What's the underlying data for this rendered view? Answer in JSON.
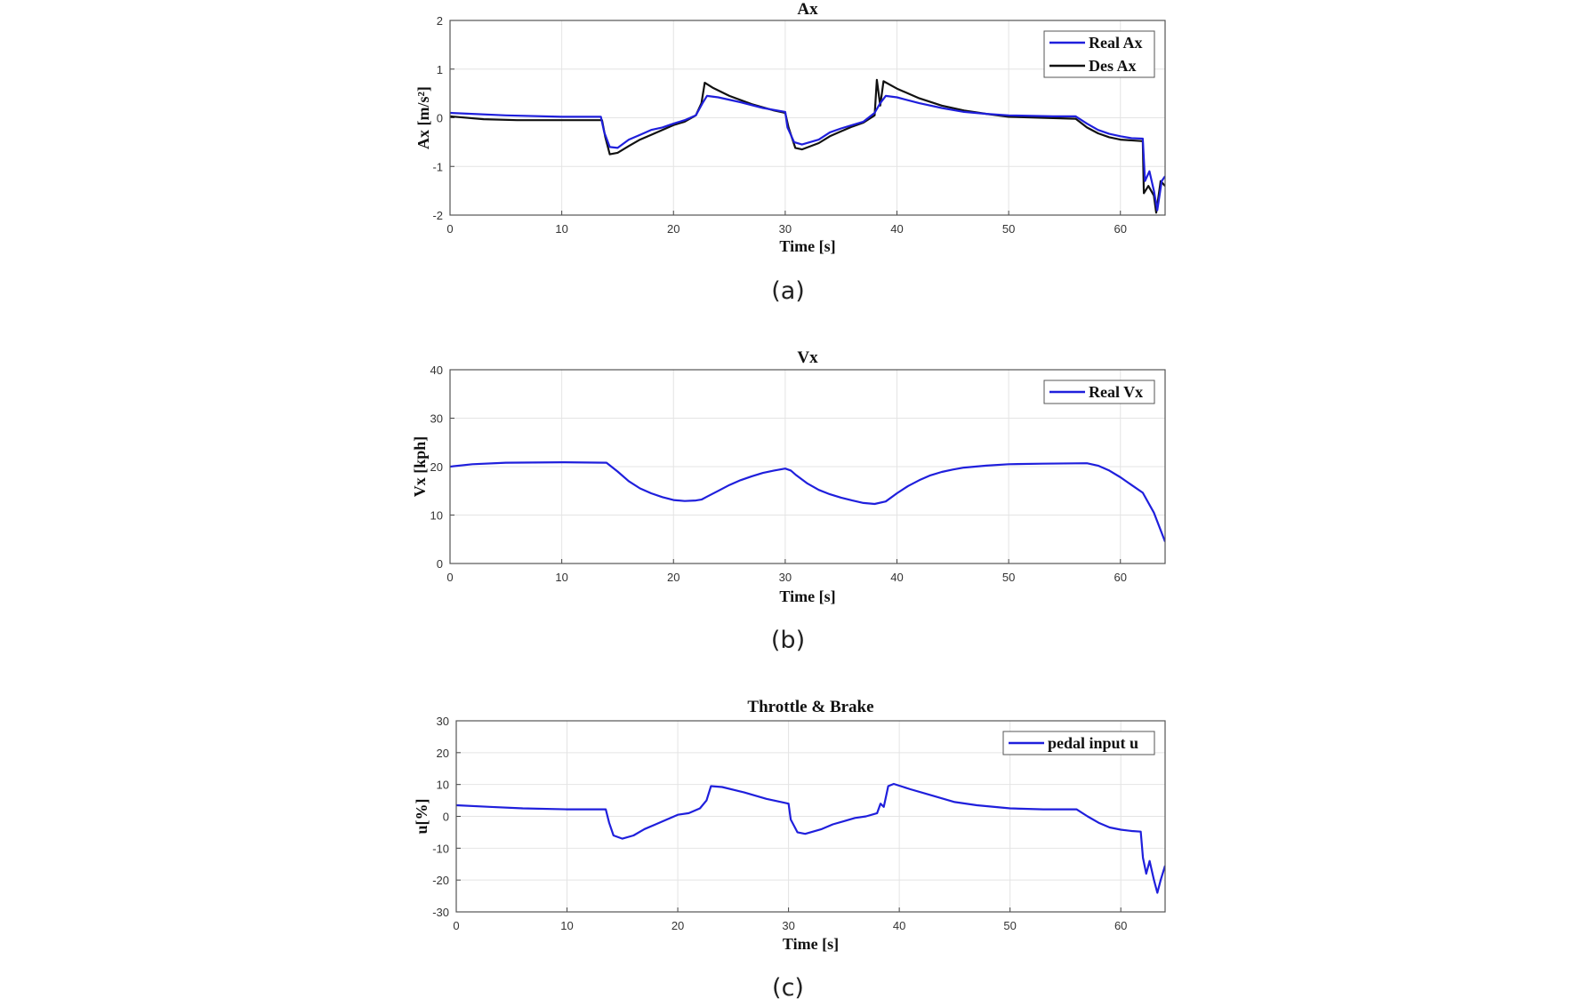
{
  "chart_data": [
    {
      "type": "line",
      "title": "Ax",
      "xlabel": "Time [s]",
      "ylabel": "Ax [m/s²]",
      "xlim": [
        0,
        64
      ],
      "ylim": [
        -2,
        2
      ],
      "xticks": [
        0,
        10,
        20,
        30,
        40,
        50,
        60
      ],
      "yticks": [
        -2,
        -1,
        0,
        1,
        2
      ],
      "grid": true,
      "legend_position": "top-right",
      "caption": "(a)",
      "series": [
        {
          "name": "Real Ax",
          "color": "#1f1fdc",
          "points": [
            [
              0,
              0.1
            ],
            [
              5,
              0.05
            ],
            [
              10,
              0.02
            ],
            [
              13.5,
              0.02
            ],
            [
              13.8,
              -0.3
            ],
            [
              14.3,
              -0.6
            ],
            [
              15,
              -0.62
            ],
            [
              16,
              -0.45
            ],
            [
              17,
              -0.35
            ],
            [
              18,
              -0.25
            ],
            [
              19,
              -0.2
            ],
            [
              20,
              -0.12
            ],
            [
              21,
              -0.05
            ],
            [
              22,
              0.05
            ],
            [
              22.6,
              0.3
            ],
            [
              23,
              0.45
            ],
            [
              24,
              0.42
            ],
            [
              26,
              0.32
            ],
            [
              28,
              0.2
            ],
            [
              30,
              0.12
            ],
            [
              30.2,
              -0.2
            ],
            [
              30.8,
              -0.5
            ],
            [
              31.5,
              -0.55
            ],
            [
              33,
              -0.45
            ],
            [
              34,
              -0.3
            ],
            [
              35,
              -0.22
            ],
            [
              36,
              -0.15
            ],
            [
              37,
              -0.08
            ],
            [
              38,
              0.1
            ],
            [
              38.5,
              0.3
            ],
            [
              39,
              0.45
            ],
            [
              40,
              0.42
            ],
            [
              42,
              0.3
            ],
            [
              44,
              0.2
            ],
            [
              46,
              0.12
            ],
            [
              48,
              0.08
            ],
            [
              50,
              0.05
            ],
            [
              54,
              0.03
            ],
            [
              56,
              0.03
            ],
            [
              57,
              -0.12
            ],
            [
              58,
              -0.25
            ],
            [
              59,
              -0.33
            ],
            [
              60,
              -0.38
            ],
            [
              61,
              -0.42
            ],
            [
              62,
              -0.43
            ],
            [
              62.2,
              -1.3
            ],
            [
              62.6,
              -1.1
            ],
            [
              63,
              -1.5
            ],
            [
              63.3,
              -1.9
            ],
            [
              63.7,
              -1.3
            ],
            [
              64,
              -1.2
            ]
          ]
        },
        {
          "name": "Des Ax",
          "color": "#111111",
          "points": [
            [
              0,
              0.03
            ],
            [
              3,
              -0.03
            ],
            [
              6,
              -0.05
            ],
            [
              10,
              -0.05
            ],
            [
              13.6,
              -0.05
            ],
            [
              13.9,
              -0.4
            ],
            [
              14.3,
              -0.75
            ],
            [
              15,
              -0.72
            ],
            [
              16,
              -0.58
            ],
            [
              17,
              -0.45
            ],
            [
              18,
              -0.35
            ],
            [
              19,
              -0.25
            ],
            [
              20,
              -0.15
            ],
            [
              21,
              -0.08
            ],
            [
              22,
              0.05
            ],
            [
              22.5,
              0.3
            ],
            [
              22.8,
              0.72
            ],
            [
              23.5,
              0.62
            ],
            [
              25,
              0.45
            ],
            [
              27,
              0.28
            ],
            [
              29,
              0.15
            ],
            [
              30,
              0.1
            ],
            [
              30.3,
              -0.2
            ],
            [
              30.9,
              -0.62
            ],
            [
              31.5,
              -0.65
            ],
            [
              33,
              -0.52
            ],
            [
              34,
              -0.38
            ],
            [
              35,
              -0.28
            ],
            [
              36,
              -0.18
            ],
            [
              37,
              -0.1
            ],
            [
              38,
              0.05
            ],
            [
              38.2,
              0.78
            ],
            [
              38.5,
              0.25
            ],
            [
              38.8,
              0.75
            ],
            [
              40,
              0.6
            ],
            [
              42,
              0.4
            ],
            [
              44,
              0.25
            ],
            [
              46,
              0.15
            ],
            [
              48,
              0.08
            ],
            [
              50,
              0.02
            ],
            [
              53,
              0
            ],
            [
              56,
              -0.02
            ],
            [
              57,
              -0.2
            ],
            [
              58,
              -0.32
            ],
            [
              59,
              -0.4
            ],
            [
              60,
              -0.45
            ],
            [
              62,
              -0.48
            ],
            [
              62.1,
              -1.55
            ],
            [
              62.5,
              -1.4
            ],
            [
              63,
              -1.6
            ],
            [
              63.2,
              -1.95
            ],
            [
              63.6,
              -1.3
            ],
            [
              64,
              -1.4
            ]
          ]
        }
      ]
    },
    {
      "type": "line",
      "title": "Vx",
      "xlabel": "Time [s]",
      "ylabel": "Vx [kph]",
      "xlim": [
        0,
        64
      ],
      "ylim": [
        0,
        40
      ],
      "xticks": [
        0,
        10,
        20,
        30,
        40,
        50,
        60
      ],
      "yticks": [
        0,
        10,
        20,
        30,
        40
      ],
      "grid": true,
      "legend_position": "top-right",
      "caption": "(b)",
      "series": [
        {
          "name": "Real Vx",
          "color": "#1f1fdc",
          "points": [
            [
              0,
              20
            ],
            [
              2,
              20.5
            ],
            [
              5,
              20.8
            ],
            [
              10,
              20.9
            ],
            [
              14,
              20.8
            ],
            [
              15,
              19
            ],
            [
              16,
              17
            ],
            [
              17,
              15.5
            ],
            [
              18,
              14.5
            ],
            [
              19,
              13.7
            ],
            [
              20,
              13.1
            ],
            [
              21,
              12.9
            ],
            [
              22,
              13
            ],
            [
              22.5,
              13.2
            ],
            [
              23,
              13.8
            ],
            [
              24,
              15
            ],
            [
              25,
              16.2
            ],
            [
              26,
              17.2
            ],
            [
              27,
              18
            ],
            [
              28,
              18.7
            ],
            [
              29,
              19.2
            ],
            [
              30,
              19.6
            ],
            [
              30.5,
              19.2
            ],
            [
              31,
              18.2
            ],
            [
              32,
              16.5
            ],
            [
              33,
              15.2
            ],
            [
              34,
              14.3
            ],
            [
              35,
              13.6
            ],
            [
              36,
              13
            ],
            [
              37,
              12.5
            ],
            [
              38,
              12.3
            ],
            [
              39,
              12.8
            ],
            [
              40,
              14.5
            ],
            [
              41,
              16
            ],
            [
              42,
              17.2
            ],
            [
              43,
              18.2
            ],
            [
              44,
              18.9
            ],
            [
              45,
              19.4
            ],
            [
              46,
              19.8
            ],
            [
              48,
              20.2
            ],
            [
              50,
              20.5
            ],
            [
              53,
              20.6
            ],
            [
              57,
              20.7
            ],
            [
              58,
              20.2
            ],
            [
              59,
              19.2
            ],
            [
              60,
              17.8
            ],
            [
              61,
              16.2
            ],
            [
              62,
              14.6
            ],
            [
              63,
              10.5
            ],
            [
              64,
              4.5
            ]
          ]
        }
      ]
    },
    {
      "type": "line",
      "title": "Throttle & Brake",
      "xlabel": "Time [s]",
      "ylabel": "u[%]",
      "xlim": [
        0,
        64
      ],
      "ylim": [
        -30,
        30
      ],
      "xticks": [
        0,
        10,
        20,
        30,
        40,
        50,
        60
      ],
      "yticks": [
        -30,
        -20,
        -10,
        0,
        10,
        20,
        30
      ],
      "grid": true,
      "legend_position": "top-right",
      "caption": "(c)",
      "series": [
        {
          "name": "pedal input u",
          "color": "#1f1fdc",
          "points": [
            [
              0,
              3.5
            ],
            [
              3,
              3
            ],
            [
              6,
              2.5
            ],
            [
              10,
              2.2
            ],
            [
              13.5,
              2.2
            ],
            [
              13.8,
              -2
            ],
            [
              14.2,
              -6
            ],
            [
              15,
              -7
            ],
            [
              16,
              -6
            ],
            [
              17,
              -4
            ],
            [
              18,
              -2.5
            ],
            [
              19,
              -1
            ],
            [
              20,
              0.5
            ],
            [
              21,
              1
            ],
            [
              22,
              2.5
            ],
            [
              22.6,
              5
            ],
            [
              23,
              9.5
            ],
            [
              24,
              9.2
            ],
            [
              26,
              7.5
            ],
            [
              28,
              5.5
            ],
            [
              30,
              4
            ],
            [
              30.2,
              -1
            ],
            [
              30.8,
              -5
            ],
            [
              31.5,
              -5.5
            ],
            [
              33,
              -4
            ],
            [
              34,
              -2.5
            ],
            [
              35,
              -1.5
            ],
            [
              36,
              -0.5
            ],
            [
              37,
              0
            ],
            [
              38,
              1
            ],
            [
              38.3,
              4
            ],
            [
              38.6,
              3
            ],
            [
              39,
              9.5
            ],
            [
              39.5,
              10.2
            ],
            [
              41,
              8.5
            ],
            [
              43,
              6.5
            ],
            [
              45,
              4.5
            ],
            [
              47,
              3.5
            ],
            [
              50,
              2.5
            ],
            [
              53,
              2.2
            ],
            [
              56,
              2.2
            ],
            [
              57,
              0
            ],
            [
              58,
              -2
            ],
            [
              59,
              -3.5
            ],
            [
              60,
              -4.2
            ],
            [
              61,
              -4.6
            ],
            [
              61.8,
              -4.8
            ],
            [
              62,
              -13
            ],
            [
              62.3,
              -18
            ],
            [
              62.6,
              -14
            ],
            [
              63,
              -20
            ],
            [
              63.3,
              -24
            ],
            [
              63.6,
              -20
            ],
            [
              64,
              -15.5
            ]
          ]
        }
      ]
    }
  ]
}
